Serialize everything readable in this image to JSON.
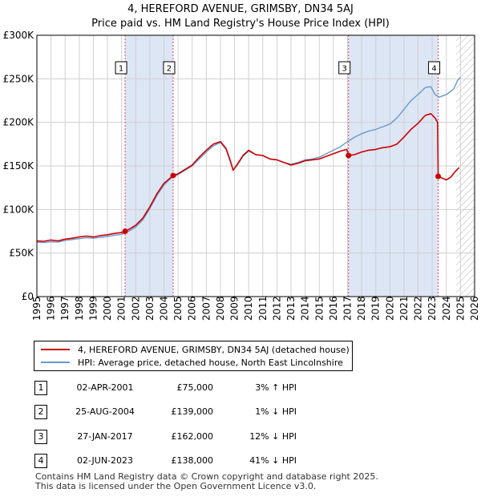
{
  "title_line1": "4, HEREFORD AVENUE, GRIMSBY, DN34 5AJ",
  "title_line2": "Price paid vs. HM Land Registry's House Price Index (HPI)",
  "chart_data": {
    "type": "line",
    "xlim": [
      1995,
      2026
    ],
    "ylim": [
      0,
      300000
    ],
    "yticks": [
      0,
      50000,
      100000,
      150000,
      200000,
      250000,
      300000
    ],
    "ytick_labels": [
      "£0",
      "£50K",
      "£100K",
      "£150K",
      "£200K",
      "£250K",
      "£300K"
    ],
    "xticks": [
      1995,
      1996,
      1997,
      1998,
      1999,
      2000,
      2001,
      2002,
      2003,
      2004,
      2005,
      2006,
      2007,
      2008,
      2009,
      2010,
      2011,
      2012,
      2013,
      2014,
      2015,
      2016,
      2017,
      2018,
      2019,
      2020,
      2021,
      2022,
      2023,
      2024,
      2025,
      2026
    ],
    "hatch_from": 2024.7,
    "sale_bands": [
      [
        2001.25,
        2004.65
      ],
      [
        2017.07,
        2023.42
      ]
    ],
    "series": [
      {
        "name": "4, HEREFORD AVENUE, GRIMSBY, DN34 5AJ (detached house)",
        "color": "#cc0000",
        "points": [
          [
            1995.0,
            64000
          ],
          [
            1995.5,
            63500
          ],
          [
            1996.0,
            65000
          ],
          [
            1996.5,
            64000
          ],
          [
            1997.0,
            66000
          ],
          [
            1997.5,
            67000
          ],
          [
            1998.0,
            68500
          ],
          [
            1998.5,
            69500
          ],
          [
            1999.0,
            68500
          ],
          [
            1999.5,
            70000
          ],
          [
            2000.0,
            71000
          ],
          [
            2000.5,
            72500
          ],
          [
            2001.0,
            73500
          ],
          [
            2001.25,
            75000
          ],
          [
            2001.5,
            77000
          ],
          [
            2002.0,
            82000
          ],
          [
            2002.5,
            90000
          ],
          [
            2003.0,
            103000
          ],
          [
            2003.5,
            118000
          ],
          [
            2004.0,
            130000
          ],
          [
            2004.65,
            139000
          ],
          [
            2005.0,
            141000
          ],
          [
            2005.5,
            146000
          ],
          [
            2006.0,
            151000
          ],
          [
            2006.5,
            160000
          ],
          [
            2007.0,
            168000
          ],
          [
            2007.5,
            175000
          ],
          [
            2008.0,
            178000
          ],
          [
            2008.4,
            170000
          ],
          [
            2008.7,
            156000
          ],
          [
            2008.9,
            145000
          ],
          [
            2009.2,
            152000
          ],
          [
            2009.6,
            162000
          ],
          [
            2010.0,
            168000
          ],
          [
            2010.5,
            163000
          ],
          [
            2011.0,
            162000
          ],
          [
            2011.5,
            158000
          ],
          [
            2012.0,
            157000
          ],
          [
            2012.5,
            154000
          ],
          [
            2013.0,
            151000
          ],
          [
            2013.5,
            153000
          ],
          [
            2014.0,
            156000
          ],
          [
            2014.5,
            157000
          ],
          [
            2015.0,
            158000
          ],
          [
            2015.5,
            161000
          ],
          [
            2016.0,
            164000
          ],
          [
            2016.5,
            167000
          ],
          [
            2016.95,
            169000
          ],
          [
            2017.07,
            162000
          ],
          [
            2017.5,
            163000
          ],
          [
            2018.0,
            166000
          ],
          [
            2018.5,
            168000
          ],
          [
            2019.0,
            169000
          ],
          [
            2019.5,
            171000
          ],
          [
            2020.0,
            172000
          ],
          [
            2020.5,
            175000
          ],
          [
            2021.0,
            183000
          ],
          [
            2021.5,
            192000
          ],
          [
            2022.0,
            199000
          ],
          [
            2022.5,
            208000
          ],
          [
            2022.9,
            210000
          ],
          [
            2023.2,
            205000
          ],
          [
            2023.38,
            200000
          ],
          [
            2023.42,
            138000
          ],
          [
            2023.7,
            136000
          ],
          [
            2024.0,
            134000
          ],
          [
            2024.3,
            137000
          ],
          [
            2024.6,
            143000
          ],
          [
            2024.9,
            148000
          ]
        ]
      },
      {
        "name": "HPI: Average price, detached house, North East Lincolnshire",
        "color": "#6699cc",
        "points": [
          [
            1995.0,
            62500
          ],
          [
            1995.5,
            62000
          ],
          [
            1996.0,
            63000
          ],
          [
            1996.5,
            62500
          ],
          [
            1997.0,
            64500
          ],
          [
            1997.5,
            65500
          ],
          [
            1998.0,
            66500
          ],
          [
            1998.5,
            67500
          ],
          [
            1999.0,
            67000
          ],
          [
            1999.5,
            68000
          ],
          [
            2000.0,
            69000
          ],
          [
            2000.5,
            70500
          ],
          [
            2001.0,
            71500
          ],
          [
            2001.5,
            75000
          ],
          [
            2002.0,
            80000
          ],
          [
            2002.5,
            88000
          ],
          [
            2003.0,
            101000
          ],
          [
            2003.5,
            116000
          ],
          [
            2004.0,
            128000
          ],
          [
            2004.5,
            136000
          ],
          [
            2005.0,
            140000
          ],
          [
            2005.5,
            145000
          ],
          [
            2006.0,
            150000
          ],
          [
            2006.5,
            158000
          ],
          [
            2007.0,
            166000
          ],
          [
            2007.5,
            173000
          ],
          [
            2008.0,
            177000
          ],
          [
            2008.4,
            169000
          ],
          [
            2008.7,
            155000
          ],
          [
            2008.9,
            145000
          ],
          [
            2009.2,
            151000
          ],
          [
            2009.6,
            161000
          ],
          [
            2010.0,
            167000
          ],
          [
            2010.5,
            163000
          ],
          [
            2011.0,
            162000
          ],
          [
            2011.5,
            158000
          ],
          [
            2012.0,
            157000
          ],
          [
            2012.5,
            154000
          ],
          [
            2013.0,
            152000
          ],
          [
            2013.5,
            154000
          ],
          [
            2014.0,
            157000
          ],
          [
            2014.5,
            158000
          ],
          [
            2015.0,
            160000
          ],
          [
            2015.5,
            164000
          ],
          [
            2016.0,
            168000
          ],
          [
            2016.5,
            172000
          ],
          [
            2017.0,
            178000
          ],
          [
            2017.5,
            183000
          ],
          [
            2018.0,
            187000
          ],
          [
            2018.5,
            190000
          ],
          [
            2019.0,
            192000
          ],
          [
            2019.5,
            195000
          ],
          [
            2020.0,
            198000
          ],
          [
            2020.5,
            205000
          ],
          [
            2021.0,
            215000
          ],
          [
            2021.5,
            225000
          ],
          [
            2022.0,
            232000
          ],
          [
            2022.5,
            240000
          ],
          [
            2022.9,
            241000
          ],
          [
            2023.2,
            232000
          ],
          [
            2023.5,
            229000
          ],
          [
            2024.0,
            232000
          ],
          [
            2024.5,
            238000
          ],
          [
            2024.8,
            248000
          ],
          [
            2025.0,
            252000
          ]
        ]
      }
    ],
    "sales": [
      {
        "id": "1",
        "x": 2001.25,
        "y": 75000
      },
      {
        "id": "2",
        "x": 2004.65,
        "y": 139000
      },
      {
        "id": "3",
        "x": 2017.07,
        "y": 162000
      },
      {
        "id": "4",
        "x": 2023.42,
        "y": 138000
      }
    ]
  },
  "legend": {
    "property_label": "4, HEREFORD AVENUE, GRIMSBY, DN34 5AJ (detached house)",
    "hpi_label": "HPI: Average price, detached house, North East Lincolnshire"
  },
  "sales_table": [
    {
      "id": "1",
      "date": "02-APR-2001",
      "price": "£75,000",
      "hpi": "3% ↑ HPI"
    },
    {
      "id": "2",
      "date": "25-AUG-2004",
      "price": "£139,000",
      "hpi": "1% ↓ HPI"
    },
    {
      "id": "3",
      "date": "27-JAN-2017",
      "price": "£162,000",
      "hpi": "12% ↓ HPI"
    },
    {
      "id": "4",
      "date": "02-JUN-2023",
      "price": "£138,000",
      "hpi": "41% ↓ HPI"
    }
  ],
  "footer_line1": "Contains HM Land Registry data © Crown copyright and database right 2025.",
  "footer_line2": "This data is licensed under the Open Government Licence v3.0."
}
